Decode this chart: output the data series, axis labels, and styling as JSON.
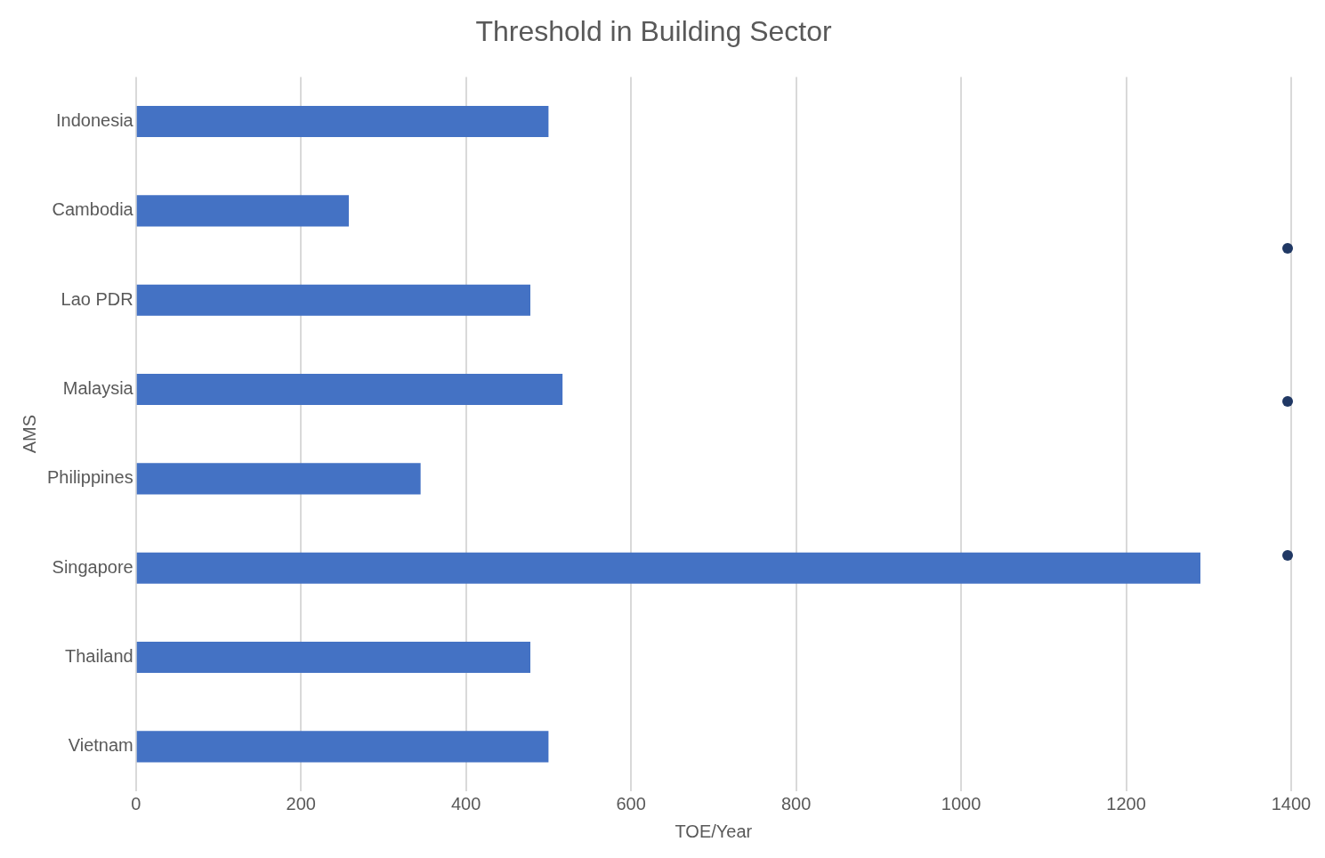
{
  "chart_data": {
    "type": "bar",
    "orientation": "horizontal",
    "title": "Threshold in Building Sector",
    "xlabel": "TOE/Year",
    "ylabel": "AMS",
    "categories": [
      "Indonesia",
      "Cambodia",
      "Lao PDR",
      "Malaysia",
      "Philippines",
      "Singapore",
      "Thailand",
      "Vietnam"
    ],
    "values": [
      500,
      258,
      478,
      517,
      345,
      1290,
      478,
      500
    ],
    "color": "#4472c4",
    "xlim": [
      0,
      1400
    ],
    "xticks": [
      0,
      200,
      400,
      600,
      800,
      1000,
      1200,
      1400
    ],
    "grid": "x",
    "legend": false
  }
}
